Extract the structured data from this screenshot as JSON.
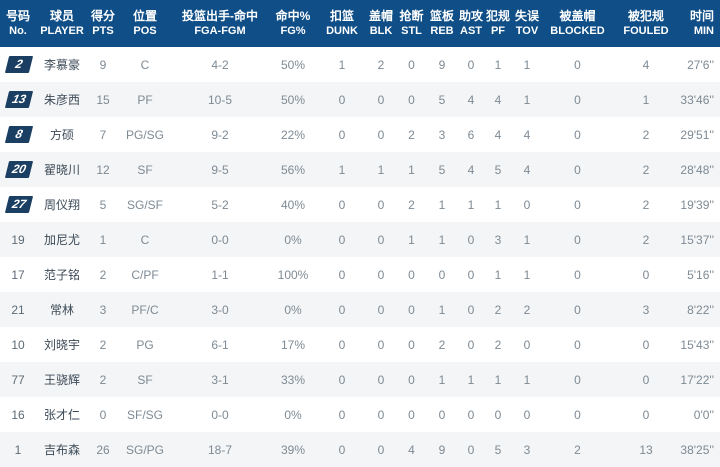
{
  "colors": {
    "header_bg": "#0f4e87",
    "badge_bg": "#1b3e63",
    "row_alt_bg": "#f4f5f6",
    "name_text": "#3c4a57",
    "stat_text": "#7e8a94",
    "no_text": "#5d6a75"
  },
  "table": {
    "fields": [
      "no",
      "player",
      "pts",
      "pos",
      "fga_fgm",
      "fg_pct",
      "dunk",
      "blk",
      "stl",
      "reb",
      "ast",
      "pf",
      "tov",
      "blocked",
      "fouled",
      "min"
    ],
    "columns": [
      {
        "zh": "号码",
        "en": "No."
      },
      {
        "zh": "球员",
        "en": "PLAYER"
      },
      {
        "zh": "得分",
        "en": "PTS"
      },
      {
        "zh": "位置",
        "en": "POS"
      },
      {
        "zh": "投篮出手-命中",
        "en": "FGA-FGM"
      },
      {
        "zh": "命中%",
        "en": "FG%"
      },
      {
        "zh": "扣篮",
        "en": "DUNK"
      },
      {
        "zh": "盖帽",
        "en": "BLK"
      },
      {
        "zh": "抢断",
        "en": "STL"
      },
      {
        "zh": "篮板",
        "en": "REB"
      },
      {
        "zh": "助攻",
        "en": "AST"
      },
      {
        "zh": "犯规",
        "en": "PF"
      },
      {
        "zh": "失误",
        "en": "TOV"
      },
      {
        "zh": "被盖帽",
        "en": "BLOCKED"
      },
      {
        "zh": "被犯规",
        "en": "FOULED"
      },
      {
        "zh": "时间",
        "en": "MIN"
      }
    ],
    "rows": [
      {
        "no": "2",
        "starter": true,
        "player": "李慕豪",
        "pts": "9",
        "pos": "C",
        "fga_fgm": "4-2",
        "fg_pct": "50%",
        "dunk": "1",
        "blk": "2",
        "stl": "0",
        "reb": "9",
        "ast": "0",
        "pf": "1",
        "tov": "1",
        "blocked": "0",
        "fouled": "4",
        "min": "27'6''"
      },
      {
        "no": "13",
        "starter": true,
        "player": "朱彦西",
        "pts": "15",
        "pos": "PF",
        "fga_fgm": "10-5",
        "fg_pct": "50%",
        "dunk": "0",
        "blk": "0",
        "stl": "0",
        "reb": "5",
        "ast": "4",
        "pf": "4",
        "tov": "1",
        "blocked": "0",
        "fouled": "1",
        "min": "33'46''"
      },
      {
        "no": "8",
        "starter": true,
        "player": "方硕",
        "pts": "7",
        "pos": "PG/SG",
        "fga_fgm": "9-2",
        "fg_pct": "22%",
        "dunk": "0",
        "blk": "0",
        "stl": "2",
        "reb": "3",
        "ast": "6",
        "pf": "4",
        "tov": "4",
        "blocked": "0",
        "fouled": "2",
        "min": "29'51''"
      },
      {
        "no": "20",
        "starter": true,
        "player": "翟晓川",
        "pts": "12",
        "pos": "SF",
        "fga_fgm": "9-5",
        "fg_pct": "56%",
        "dunk": "1",
        "blk": "1",
        "stl": "1",
        "reb": "5",
        "ast": "4",
        "pf": "5",
        "tov": "4",
        "blocked": "0",
        "fouled": "2",
        "min": "28'48''"
      },
      {
        "no": "27",
        "starter": true,
        "player": "周仪翔",
        "pts": "5",
        "pos": "SG/SF",
        "fga_fgm": "5-2",
        "fg_pct": "40%",
        "dunk": "0",
        "blk": "0",
        "stl": "2",
        "reb": "1",
        "ast": "1",
        "pf": "1",
        "tov": "0",
        "blocked": "0",
        "fouled": "2",
        "min": "19'39''"
      },
      {
        "no": "19",
        "starter": false,
        "player": "加尼尤",
        "pts": "1",
        "pos": "C",
        "fga_fgm": "0-0",
        "fg_pct": "0%",
        "dunk": "0",
        "blk": "0",
        "stl": "1",
        "reb": "1",
        "ast": "0",
        "pf": "3",
        "tov": "1",
        "blocked": "0",
        "fouled": "2",
        "min": "15'37''"
      },
      {
        "no": "17",
        "starter": false,
        "player": "范子铭",
        "pts": "2",
        "pos": "C/PF",
        "fga_fgm": "1-1",
        "fg_pct": "100%",
        "dunk": "0",
        "blk": "0",
        "stl": "0",
        "reb": "0",
        "ast": "0",
        "pf": "1",
        "tov": "1",
        "blocked": "0",
        "fouled": "0",
        "min": "5'16''"
      },
      {
        "no": "21",
        "starter": false,
        "player": "常林",
        "pts": "3",
        "pos": "PF/C",
        "fga_fgm": "3-0",
        "fg_pct": "0%",
        "dunk": "0",
        "blk": "0",
        "stl": "0",
        "reb": "1",
        "ast": "0",
        "pf": "2",
        "tov": "2",
        "blocked": "0",
        "fouled": "3",
        "min": "8'22''"
      },
      {
        "no": "10",
        "starter": false,
        "player": "刘晓宇",
        "pts": "2",
        "pos": "PG",
        "fga_fgm": "6-1",
        "fg_pct": "17%",
        "dunk": "0",
        "blk": "0",
        "stl": "0",
        "reb": "2",
        "ast": "0",
        "pf": "2",
        "tov": "0",
        "blocked": "0",
        "fouled": "0",
        "min": "15'43''"
      },
      {
        "no": "77",
        "starter": false,
        "player": "王骁辉",
        "pts": "2",
        "pos": "SF",
        "fga_fgm": "3-1",
        "fg_pct": "33%",
        "dunk": "0",
        "blk": "0",
        "stl": "0",
        "reb": "1",
        "ast": "1",
        "pf": "1",
        "tov": "1",
        "blocked": "0",
        "fouled": "0",
        "min": "17'22''"
      },
      {
        "no": "16",
        "starter": false,
        "player": "张才仁",
        "pts": "0",
        "pos": "SF/SG",
        "fga_fgm": "0-0",
        "fg_pct": "0%",
        "dunk": "0",
        "blk": "0",
        "stl": "0",
        "reb": "0",
        "ast": "0",
        "pf": "0",
        "tov": "0",
        "blocked": "0",
        "fouled": "0",
        "min": "0'0''"
      },
      {
        "no": "1",
        "starter": false,
        "player": "吉布森",
        "pts": "26",
        "pos": "SG/PG",
        "fga_fgm": "18-7",
        "fg_pct": "39%",
        "dunk": "0",
        "blk": "0",
        "stl": "4",
        "reb": "9",
        "ast": "0",
        "pf": "5",
        "tov": "3",
        "blocked": "2",
        "fouled": "13",
        "min": "38'25''"
      }
    ]
  }
}
